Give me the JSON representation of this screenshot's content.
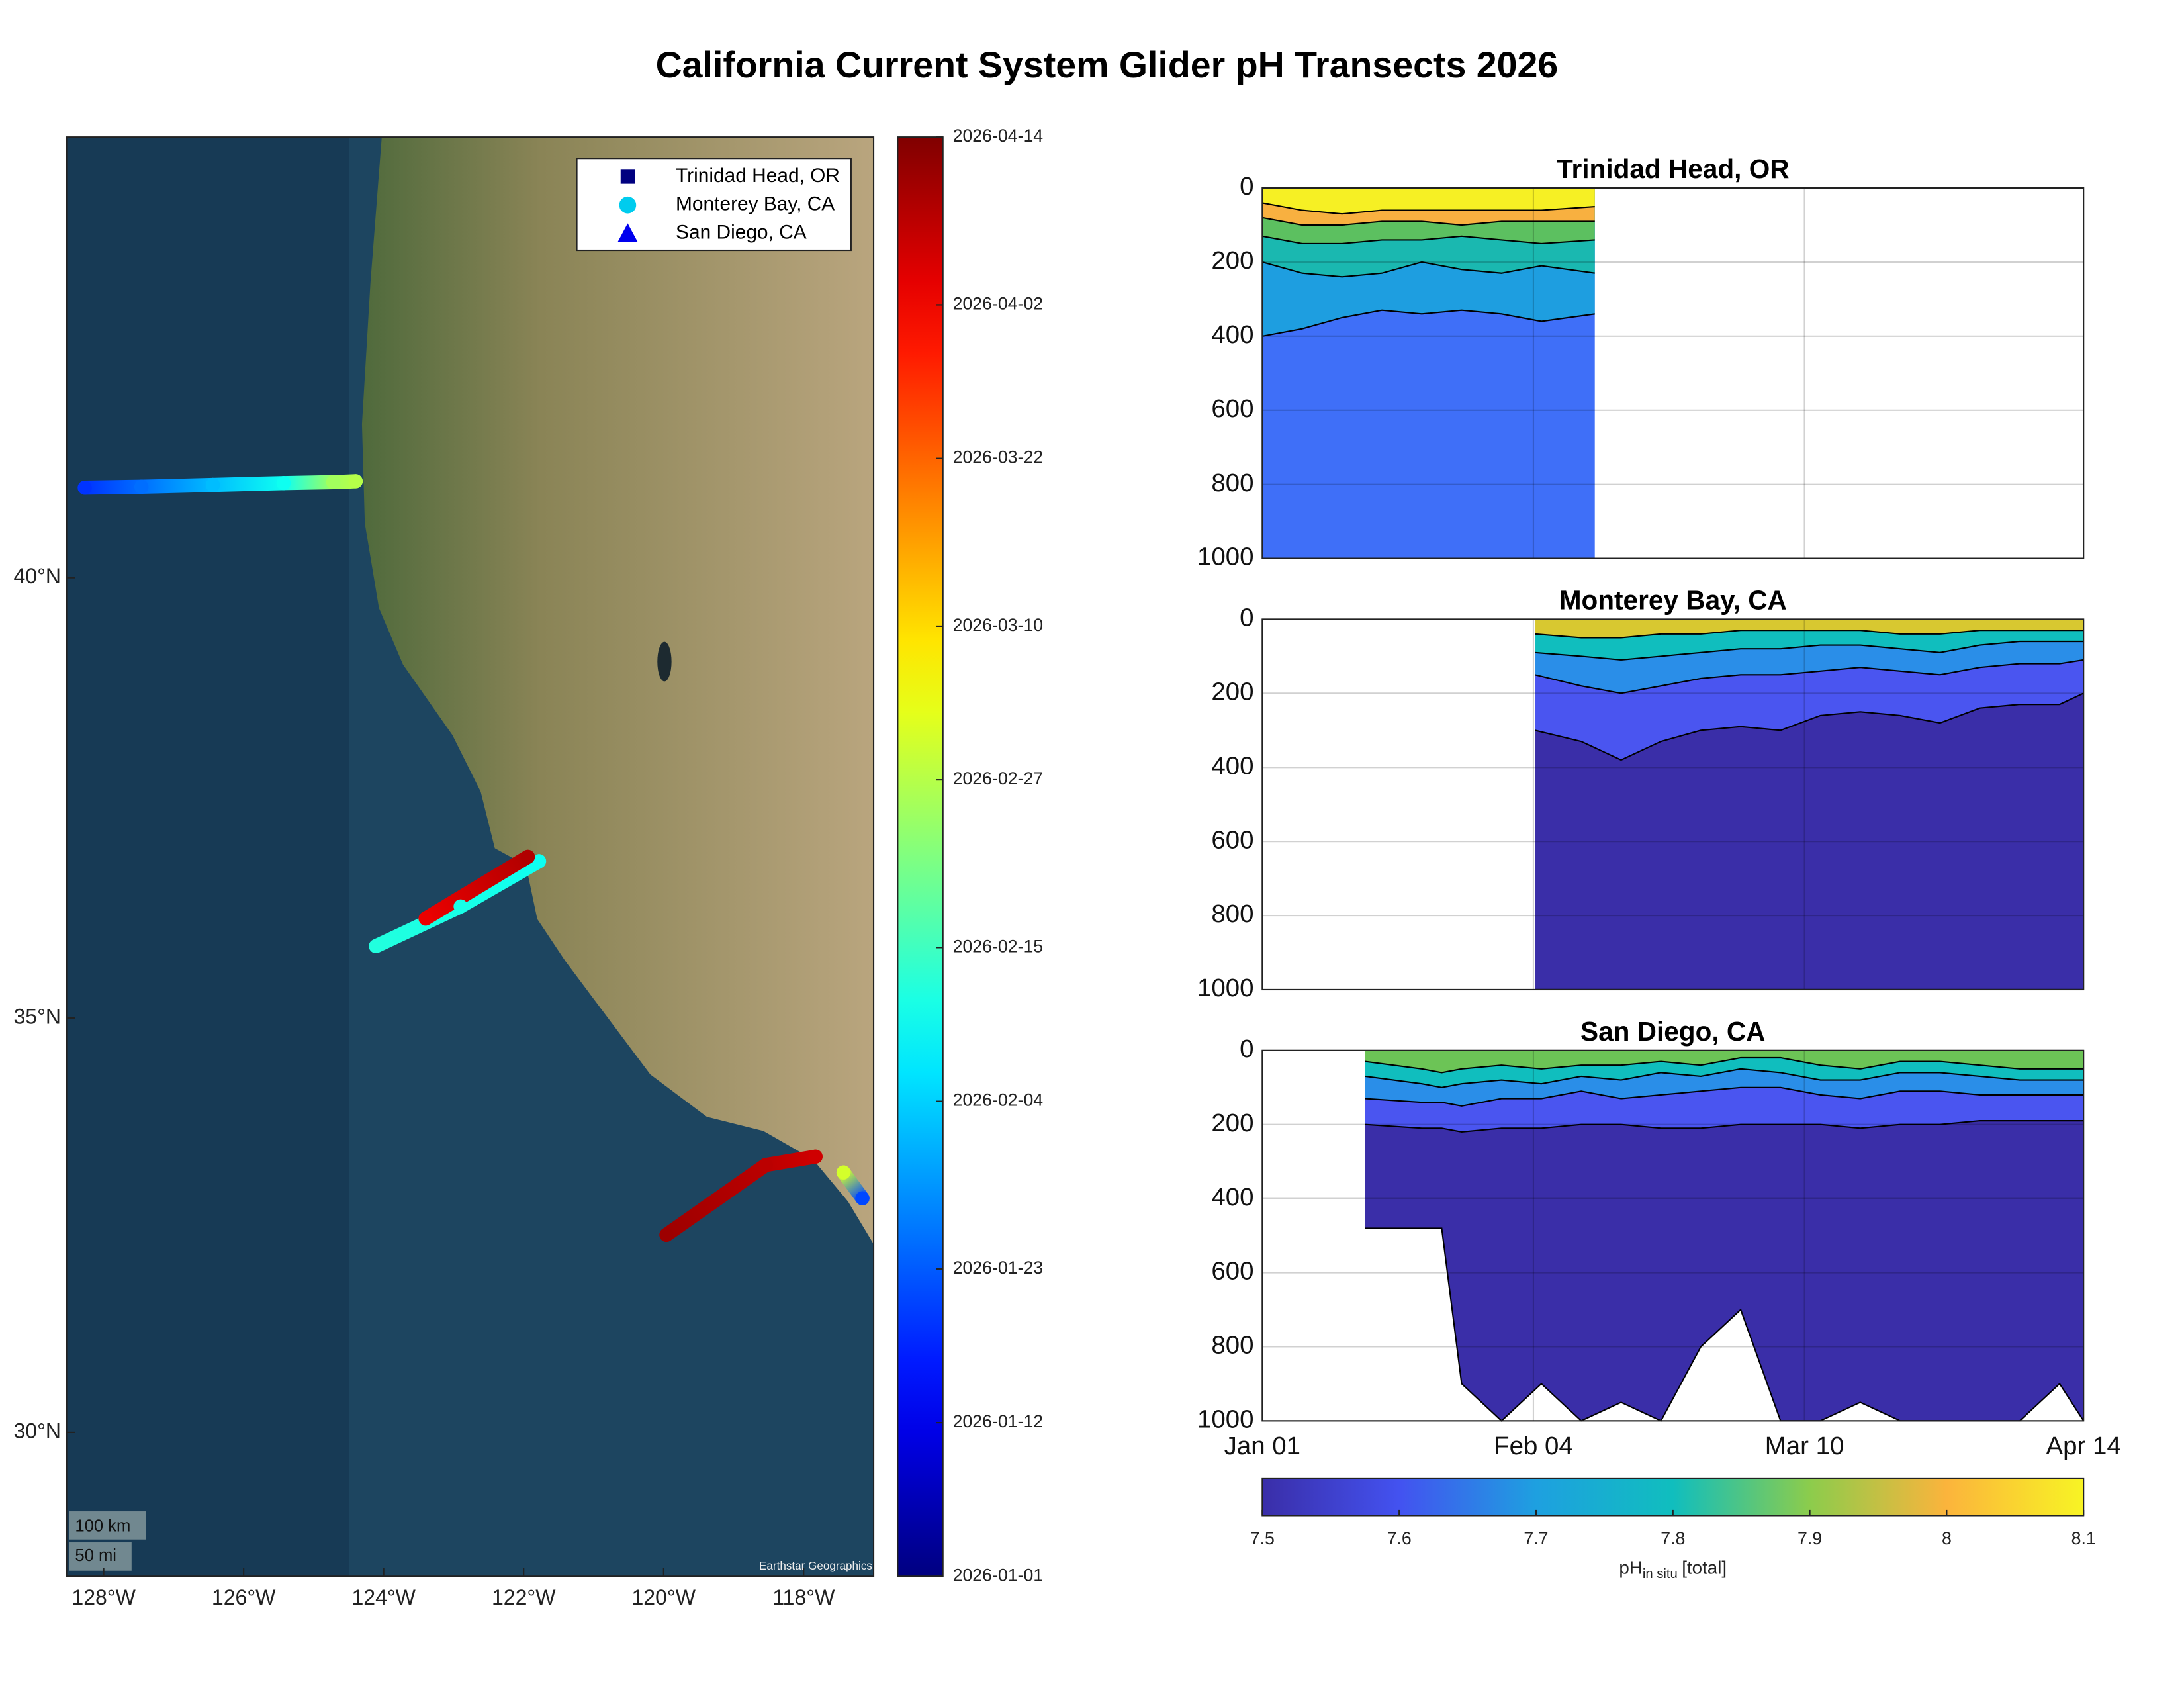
{
  "title": "California Current System Glider pH Transects 2026",
  "chart_data": [
    {
      "type": "map",
      "projection": "mercator",
      "xlim": [
        -128.53,
        -117.0
      ],
      "ylim": [
        28.2,
        44.66
      ],
      "xticks": [
        {
          "value": -128,
          "label": "128°W"
        },
        {
          "value": -126,
          "label": "126°W"
        },
        {
          "value": -124,
          "label": "124°W"
        },
        {
          "value": -122,
          "label": "122°W"
        },
        {
          "value": -120,
          "label": "120°W"
        },
        {
          "value": -118,
          "label": "118°W"
        }
      ],
      "yticks": [
        {
          "value": 30,
          "label": "30°N"
        },
        {
          "value": 35,
          "label": "35°N"
        },
        {
          "value": 40,
          "label": "40°N"
        }
      ],
      "legend": "upper right",
      "series": [
        {
          "name": "Trinidad Head, OR",
          "marker": "square",
          "color": "#000080",
          "x": [
            -128.27,
            -127.46,
            -126.44,
            -125.43,
            -124.72,
            -124.4
          ],
          "y": [
            40.98,
            40.99,
            41.01,
            41.03,
            41.04,
            41.05
          ],
          "c": [
            18,
            24,
            32,
            40,
            55,
            57
          ]
        },
        {
          "name": "Monterey Bay, CA",
          "marker": "circle",
          "color": "#00ccee",
          "x": [
            -121.78,
            -122.9,
            -124.11,
            null,
            -123.4,
            -121.94
          ],
          "y": [
            36.82,
            36.3,
            35.84,
            null,
            36.16,
            36.87
          ],
          "c": [
            40,
            41,
            42,
            null,
            92,
            98
          ]
        },
        {
          "name": "San Diego, CA",
          "marker": "triangle",
          "color": "#0000ee",
          "x": [
            -117.16,
            -117.43,
            null,
            -117.83,
            -118.54,
            -119.96
          ],
          "y": [
            32.86,
            33.17,
            null,
            33.36,
            33.26,
            32.42
          ],
          "c": [
            20,
            60,
            null,
            95,
            97,
            100
          ]
        }
      ],
      "scale_bar": [
        "100 km",
        "50 mi"
      ],
      "attribution": "Earthstar Geographics",
      "colorbar": {
        "colormap": "jet",
        "clim": [
          0,
          103
        ],
        "ticks": [
          {
            "value": 0,
            "label": "2026-01-01"
          },
          {
            "value": 11,
            "label": "2026-01-12"
          },
          {
            "value": 22,
            "label": "2026-01-23"
          },
          {
            "value": 34,
            "label": "2026-02-04"
          },
          {
            "value": 45,
            "label": "2026-02-15"
          },
          {
            "value": 57,
            "label": "2026-02-27"
          },
          {
            "value": 68,
            "label": "2026-03-10"
          },
          {
            "value": 80,
            "label": "2026-03-22"
          },
          {
            "value": 91,
            "label": "2026-04-02"
          },
          {
            "value": 103,
            "label": "2026-04-14"
          }
        ]
      }
    },
    {
      "type": "section",
      "title": "Trinidad Head, OR",
      "xlim": [
        0,
        103
      ],
      "ylim": [
        0,
        1000
      ],
      "y_reversed": true,
      "grid": true,
      "xticks": [
        0,
        34,
        68,
        103
      ],
      "yticks": [
        0,
        200,
        400,
        600,
        800,
        1000
      ],
      "x": [
        0,
        5,
        10,
        15,
        20,
        25,
        30,
        35,
        41.7
      ],
      "series": [
        {
          "color": "#3f6ff8",
          "values": [
            1000,
            1000,
            1000,
            1000,
            1000,
            1000,
            1000,
            1000,
            1000
          ]
        },
        {
          "color": "#1e9ee0",
          "values": [
            400,
            380,
            350,
            330,
            340,
            330,
            340,
            360,
            340
          ]
        },
        {
          "color": "#1ab8b0",
          "values": [
            200,
            230,
            240,
            230,
            200,
            220,
            230,
            210,
            230
          ]
        },
        {
          "color": "#5cc060",
          "values": [
            130,
            150,
            150,
            140,
            140,
            130,
            140,
            150,
            140
          ]
        },
        {
          "color": "#f8b040",
          "values": [
            80,
            100,
            100,
            90,
            90,
            100,
            90,
            90,
            90
          ]
        },
        {
          "color": "#f6f024",
          "values": [
            40,
            60,
            70,
            60,
            60,
            60,
            60,
            60,
            50
          ]
        }
      ]
    },
    {
      "type": "section",
      "title": "Monterey Bay, CA",
      "xlim": [
        0,
        103
      ],
      "ylim": [
        0,
        1000
      ],
      "y_reversed": true,
      "grid": true,
      "xticks": [
        0,
        34,
        68,
        103
      ],
      "yticks": [
        0,
        200,
        400,
        600,
        800,
        1000
      ],
      "x": [
        34.2,
        40,
        45,
        50,
        55,
        60,
        65,
        70,
        75,
        80,
        85,
        90,
        95,
        100,
        103
      ],
      "series": [
        {
          "color": "#3a2ea8",
          "values": [
            1000,
            1000,
            1000,
            1000,
            1000,
            1000,
            1000,
            1000,
            1000,
            1000,
            1000,
            1000,
            1000,
            1000,
            1000
          ]
        },
        {
          "color": "#4a55f0",
          "values": [
            300,
            330,
            380,
            330,
            300,
            290,
            300,
            260,
            250,
            260,
            280,
            240,
            230,
            230,
            200
          ]
        },
        {
          "color": "#2a8ee8",
          "values": [
            150,
            180,
            200,
            180,
            160,
            150,
            150,
            140,
            130,
            140,
            150,
            130,
            120,
            120,
            110
          ]
        },
        {
          "color": "#10bebe",
          "values": [
            90,
            100,
            110,
            100,
            90,
            80,
            80,
            70,
            70,
            80,
            90,
            70,
            60,
            60,
            60
          ]
        },
        {
          "color": "#d8c830",
          "values": [
            40,
            50,
            50,
            40,
            40,
            30,
            30,
            30,
            30,
            40,
            40,
            30,
            30,
            30,
            30
          ]
        }
      ]
    },
    {
      "type": "section",
      "title": "San Diego, CA",
      "xlim": [
        0,
        103
      ],
      "ylim": [
        0,
        1000
      ],
      "y_reversed": true,
      "grid": true,
      "xticks": [
        {
          "value": 0,
          "label": "Jan 01"
        },
        {
          "value": 34,
          "label": "Feb 04"
        },
        {
          "value": 68,
          "label": "Mar 10"
        },
        {
          "value": 103,
          "label": "Apr 14"
        }
      ],
      "yticks": [
        0,
        200,
        400,
        600,
        800,
        1000
      ],
      "x": [
        12.9,
        20,
        22.5,
        25,
        30,
        35,
        40,
        45,
        50,
        55,
        60,
        65,
        70,
        75,
        80,
        85,
        90,
        95,
        100,
        103
      ],
      "series": [
        {
          "color": "#3a2ea8",
          "values": [
            480,
            480,
            480,
            900,
            1000,
            900,
            1000,
            950,
            1000,
            800,
            700,
            1000,
            1000,
            950,
            1000,
            1000,
            1000,
            1000,
            900,
            1000
          ]
        },
        {
          "color": "#4a55f0",
          "values": [
            200,
            210,
            210,
            220,
            210,
            210,
            200,
            200,
            210,
            210,
            200,
            200,
            200,
            210,
            200,
            200,
            190,
            190,
            190,
            190
          ]
        },
        {
          "color": "#2a8ee8",
          "values": [
            130,
            140,
            140,
            150,
            130,
            130,
            110,
            130,
            120,
            110,
            100,
            100,
            120,
            130,
            110,
            110,
            120,
            120,
            120,
            120
          ]
        },
        {
          "color": "#10bebe",
          "values": [
            70,
            90,
            100,
            90,
            80,
            90,
            70,
            80,
            60,
            70,
            50,
            60,
            80,
            80,
            60,
            60,
            70,
            80,
            80,
            80
          ]
        },
        {
          "color": "#6cc456",
          "values": [
            30,
            50,
            60,
            50,
            40,
            50,
            40,
            40,
            30,
            40,
            20,
            20,
            40,
            50,
            30,
            30,
            40,
            50,
            50,
            50
          ]
        }
      ]
    },
    {
      "type": "colorbar",
      "colors": [
        "#3a2ea8",
        "#4352f0",
        "#1ea0e0",
        "#10bebe",
        "#8ccc4c",
        "#fbb43c",
        "#f8f424"
      ],
      "xlim": [
        7.5,
        8.1
      ],
      "xticks": [
        7.5,
        7.6,
        7.7,
        7.8,
        7.9,
        8,
        8.1
      ],
      "xlabel": {
        "main": "pH",
        "sub": "in situ",
        "suffix": "[total]"
      }
    }
  ]
}
